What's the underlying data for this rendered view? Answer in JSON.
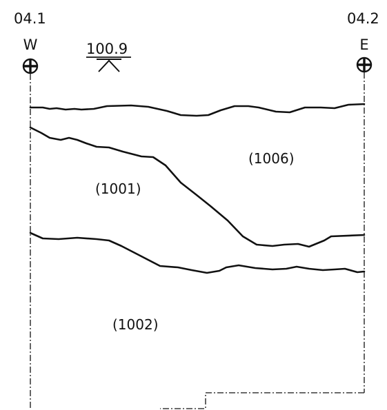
{
  "markers": {
    "left": {
      "code": "04.1",
      "direction": "W"
    },
    "right": {
      "code": "04.2",
      "direction": "E"
    }
  },
  "level": {
    "value": "100.9"
  },
  "contexts": [
    {
      "id": "context-1006",
      "label": "(1006)"
    },
    {
      "id": "context-1001",
      "label": "(1001)"
    },
    {
      "id": "context-1002",
      "label": "(1002)"
    }
  ],
  "colors": {
    "ink": "#111111",
    "background": "#ffffff"
  }
}
